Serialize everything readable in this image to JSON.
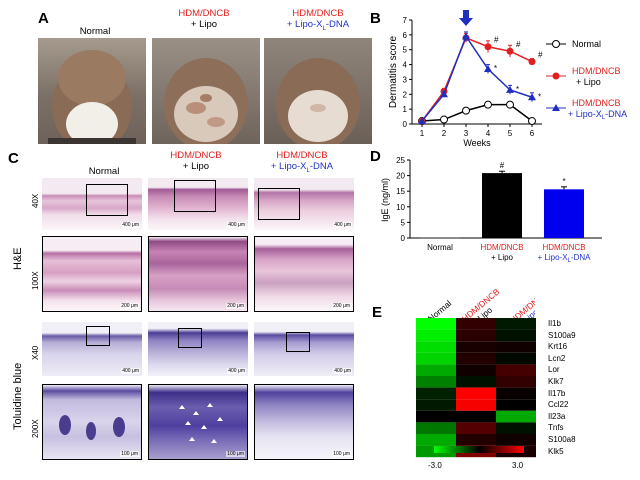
{
  "panels": {
    "a": "A",
    "b": "B",
    "c": "C",
    "d": "D",
    "e": "E"
  },
  "groups": {
    "normal": "Normal",
    "hdr": "HDM/DNCB",
    "lipo": "+ Lipo",
    "lipoxl": "+ Lipo-X",
    "xl_sub": "L",
    "dna": "-DNA"
  },
  "panel_c": {
    "row_he": "H&E",
    "row_tb": "Toluidine blue",
    "mag_40x": "40X",
    "mag_100x": "100X",
    "mag_x40": "X40",
    "mag_200x": "200X",
    "scale_400": "400 μm",
    "scale_200": "200 μm",
    "scale_100": "100 μm"
  },
  "chart_data": [
    {
      "type": "line",
      "ylabel": "Dermatitis score",
      "xlabel": "Weeks",
      "x": [
        1,
        2,
        3,
        4,
        5,
        6
      ],
      "ylim": [
        0,
        7
      ],
      "yticks": [
        0,
        1,
        2,
        3,
        4,
        5,
        6,
        7
      ],
      "series": [
        {
          "name": "Normal",
          "color": "#000000",
          "marker": "circle-open",
          "values": [
            0.2,
            0.3,
            0.9,
            1.3,
            1.3,
            0.2
          ]
        },
        {
          "name": "HDM/DNCB + Lipo",
          "color": "#e02020",
          "marker": "circle",
          "values": [
            0.2,
            2.2,
            5.8,
            5.2,
            4.9,
            4.2
          ],
          "errors": [
            0,
            0.2,
            0.3,
            0.4,
            0.4,
            0.2
          ],
          "marks": [
            "",
            "",
            "",
            "#",
            "#",
            "#"
          ]
        },
        {
          "name": "HDM/DNCB + Lipo-XL-DNA",
          "color": "#1f2fbf",
          "marker": "triangle",
          "values": [
            0.2,
            2.0,
            5.9,
            3.7,
            2.3,
            1.8
          ],
          "errors": [
            0,
            0.2,
            0.3,
            0.3,
            0.3,
            0.3
          ],
          "marks": [
            "",
            "",
            "",
            "*",
            "*",
            "*"
          ]
        }
      ],
      "arrow_at_week": 3,
      "legend": "right",
      "grid": false
    },
    {
      "type": "bar",
      "ylabel": "IgE (ng/ml)",
      "ylim": [
        0,
        25
      ],
      "yticks": [
        0,
        5,
        10,
        15,
        20,
        25
      ],
      "categories": [
        "Normal",
        "HDM/DNCB + Lipo",
        "HDM/DNCB + Lipo-XL-DNA"
      ],
      "values": [
        0.3,
        20.8,
        15.6
      ],
      "errors": [
        0,
        0.6,
        0.8
      ],
      "colors": [
        "#888888",
        "#000000",
        "#0000ee"
      ],
      "marks": [
        "",
        "#",
        "*"
      ]
    },
    {
      "type": "heatmap",
      "columns": [
        "Normal",
        "HDM/DNCB + Lipo",
        "HDM/DNCB + Lipo-XL-DNA"
      ],
      "rows": [
        "Il1b",
        "S100a9",
        "Krt16",
        "Lcn2",
        "Lor",
        "Klk7",
        "Il17b",
        "Ccl22",
        "Il23a",
        "Tnfs",
        "S100a8",
        "Klk5"
      ],
      "values": [
        [
          -3.0,
          0.6,
          -0.3
        ],
        [
          -2.8,
          0.5,
          -0.2
        ],
        [
          -2.6,
          0.3,
          0.2
        ],
        [
          -2.5,
          0.4,
          -0.1
        ],
        [
          -2.0,
          0.2,
          0.8
        ],
        [
          -1.5,
          -0.2,
          0.6
        ],
        [
          -0.4,
          3.0,
          0.1
        ],
        [
          -0.3,
          2.9,
          0.0
        ],
        [
          0.0,
          0.0,
          -2.0
        ],
        [
          -1.4,
          1.0,
          -0.2
        ],
        [
          -2.0,
          0.4,
          0.2
        ],
        [
          -1.8,
          1.5,
          0.3
        ]
      ],
      "colorbar": {
        "min_label": "-3.0",
        "max_label": "3.0"
      }
    }
  ]
}
